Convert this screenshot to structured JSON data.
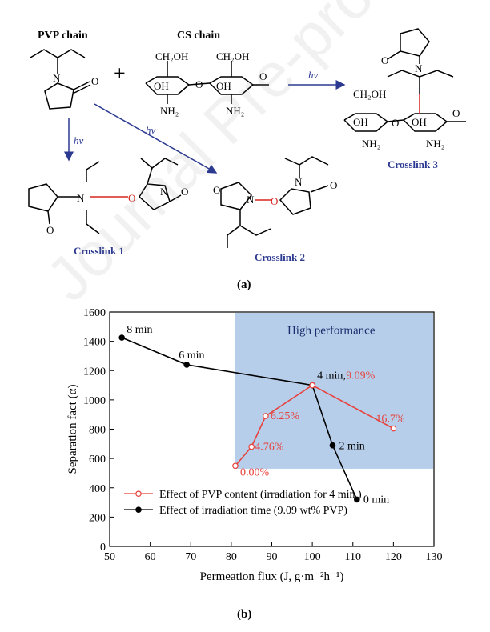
{
  "scheme": {
    "pvp_title": "PVP chain",
    "cs_title": "CS chain",
    "ch2oh": "CH₂OH",
    "oh": "OH",
    "nh2": "NH₂",
    "o": "O",
    "n": "N",
    "plus": "+",
    "hv": "hv",
    "crosslink1": "Crosslink 1",
    "crosslink2": "Crosslink 2",
    "crosslink3": "Crosslink 3",
    "panel_a": "(a)"
  },
  "panel_b": "(b)",
  "watermark": "Journal Pre-proof",
  "chart_data": {
    "type": "line",
    "xlabel": "Permeation flux (J, g·m⁻²h⁻¹)",
    "ylabel": "Separation fact (α)",
    "xlim": [
      50,
      130
    ],
    "ylim": [
      0,
      1600
    ],
    "xticks": [
      50,
      60,
      70,
      80,
      90,
      100,
      110,
      120,
      130
    ],
    "yticks": [
      0,
      200,
      400,
      600,
      800,
      1000,
      1200,
      1400,
      1600
    ],
    "highlight_region": {
      "label": "High performance",
      "x": [
        81,
        130
      ],
      "y": [
        530,
        1600
      ]
    },
    "series": [
      {
        "name": "Effect of irradiation time (9.09 wt% PVP)",
        "color": "#000000",
        "marker": "filled-circle",
        "x": [
          53,
          69,
          100,
          105,
          111
        ],
        "y": [
          1425,
          1240,
          1100,
          690,
          320
        ],
        "labels": [
          "8 min",
          "6 min",
          "4 min,",
          "2 min",
          "0 min"
        ]
      },
      {
        "name": "Effect of PVP content (irradiation for 4 min )",
        "color": "#e8413c",
        "marker": "open-circle",
        "x": [
          81,
          85,
          88.5,
          100,
          120
        ],
        "y": [
          550,
          680,
          890,
          1100,
          805
        ],
        "labels": [
          "0.00%",
          "4.76%",
          "6.25%",
          "9.09%",
          "16.7%"
        ]
      }
    ]
  }
}
